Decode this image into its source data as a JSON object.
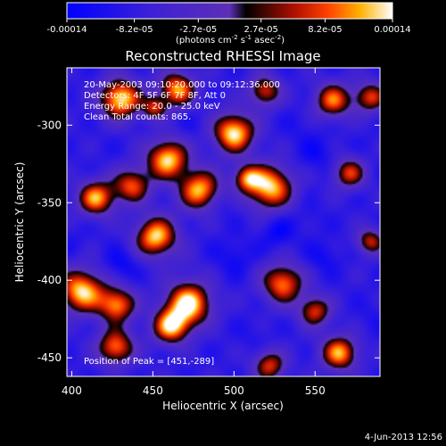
{
  "chart_data": {
    "type": "heatmap",
    "title": "Reconstructed RHESSI Image",
    "xlabel": "Heliocentric X (arcsec)",
    "ylabel": "Heliocentric Y (arcsec)",
    "xlim": [
      397,
      590
    ],
    "ylim": [
      -462,
      -263
    ],
    "x_ticks": [
      400,
      450,
      500,
      550
    ],
    "y_ticks": [
      -300,
      -350,
      -400,
      -450
    ],
    "colorbar": {
      "range": [
        -0.00014,
        0.00014
      ],
      "tick_labels": [
        "-0.00014",
        "-8.2e-05",
        "-2.7e-05",
        "2.7e-05",
        "8.2e-05",
        "0.00014"
      ],
      "tick_values": [
        -0.00014,
        -8.2e-05,
        -2.7e-05,
        2.7e-05,
        8.2e-05,
        0.00014
      ],
      "units_prefix": "(photons cm",
      "units_exp1": "-2",
      "units_mid": " s",
      "units_exp2": "-1",
      "units_mid2": " asec",
      "units_exp3": "-2",
      "units_suffix": ")"
    },
    "info_lines": [
      "20-May-2003 09:10:20.000 to 09:12:36.000",
      "Detectors: 4F 5F 6F 7F 8F, Att 0",
      "Energy Range: 20.0 - 25.0 keV",
      "Clean    Total counts: 865."
    ],
    "peak_label": "Position of Peak = [451,-289]",
    "peak": [
      451,
      -289
    ],
    "sources": [
      {
        "x": 430,
        "y": -283,
        "v": 0.00014,
        "s": 9
      },
      {
        "x": 465,
        "y": -277,
        "v": 0.00011,
        "s": 8
      },
      {
        "x": 500,
        "y": -305,
        "v": 0.00014,
        "s": 9
      },
      {
        "x": 519,
        "y": -278,
        "v": 7e-05,
        "s": 7
      },
      {
        "x": 561,
        "y": -284,
        "v": 9e-05,
        "s": 8
      },
      {
        "x": 584,
        "y": -282,
        "v": 7e-05,
        "s": 7
      },
      {
        "x": 437,
        "y": -339,
        "v": 8e-05,
        "s": 8
      },
      {
        "x": 459,
        "y": -322,
        "v": 0.00013,
        "s": 9
      },
      {
        "x": 479,
        "y": -342,
        "v": 0.00012,
        "s": 9
      },
      {
        "x": 522,
        "y": -340,
        "v": 0.00013,
        "s": 10
      },
      {
        "x": 508,
        "y": -334,
        "v": 6e-05,
        "s": 6
      },
      {
        "x": 415,
        "y": -347,
        "v": 0.00011,
        "s": 8
      },
      {
        "x": 452,
        "y": -372,
        "v": 0.00013,
        "s": 9
      },
      {
        "x": 530,
        "y": -402,
        "v": 0.0001,
        "s": 9
      },
      {
        "x": 571,
        "y": -331,
        "v": 7e-05,
        "s": 7
      },
      {
        "x": 584,
        "y": -375,
        "v": 6e-05,
        "s": 6
      },
      {
        "x": 406,
        "y": -407,
        "v": 0.00013,
        "s": 10
      },
      {
        "x": 428,
        "y": -416,
        "v": 0.0001,
        "s": 8
      },
      {
        "x": 472,
        "y": -415,
        "v": 0.00014,
        "s": 10
      },
      {
        "x": 461,
        "y": -430,
        "v": 0.00011,
        "s": 8
      },
      {
        "x": 427,
        "y": -443,
        "v": 0.0001,
        "s": 8
      },
      {
        "x": 550,
        "y": -420,
        "v": 7e-05,
        "s": 7
      },
      {
        "x": 565,
        "y": -447,
        "v": 0.00011,
        "s": 8
      },
      {
        "x": 522,
        "y": -455,
        "v": 7e-05,
        "s": 7
      },
      {
        "x": 451,
        "y": -289,
        "v": 5e-05,
        "s": 5
      },
      {
        "x": 430,
        "y": -390,
        "v": -0.00013,
        "s": 7
      },
      {
        "x": 500,
        "y": -385,
        "v": -0.00012,
        "s": 8
      },
      {
        "x": 527,
        "y": -369,
        "v": -0.00013,
        "s": 7
      },
      {
        "x": 555,
        "y": -385,
        "v": -0.00012,
        "s": 7
      },
      {
        "x": 545,
        "y": -360,
        "v": -0.0001,
        "s": 7
      },
      {
        "x": 492,
        "y": -350,
        "v": -0.00011,
        "s": 7
      },
      {
        "x": 475,
        "y": -300,
        "v": -0.0001,
        "s": 7
      },
      {
        "x": 551,
        "y": -318,
        "v": -0.00012,
        "s": 8
      },
      {
        "x": 420,
        "y": -317,
        "v": -9e-05,
        "s": 7
      },
      {
        "x": 540,
        "y": -300,
        "v": -0.0001,
        "s": 7
      },
      {
        "x": 584,
        "y": -310,
        "v": -9e-05,
        "s": 7
      },
      {
        "x": 512,
        "y": -435,
        "v": -0.0001,
        "s": 7
      },
      {
        "x": 400,
        "y": -376,
        "v": -0.0001,
        "s": 7
      },
      {
        "x": 445,
        "y": -454,
        "v": -8e-05,
        "s": 7
      },
      {
        "x": 585,
        "y": -425,
        "v": -0.0001,
        "s": 7
      },
      {
        "x": 470,
        "y": -388,
        "v": -7e-05,
        "s": 6
      }
    ],
    "grid": false,
    "colormap": "RHESSI blue-purple-red-yellow"
  },
  "footer_date": "4-Jun-2013 12:56",
  "colors": {
    "background": "#000000",
    "text": "#ffffff",
    "cmap_low": "#0000ff",
    "cmap_mid": "#5d2fb5",
    "cmap_hot": "#ff3000",
    "cmap_high": "#ffffff"
  }
}
